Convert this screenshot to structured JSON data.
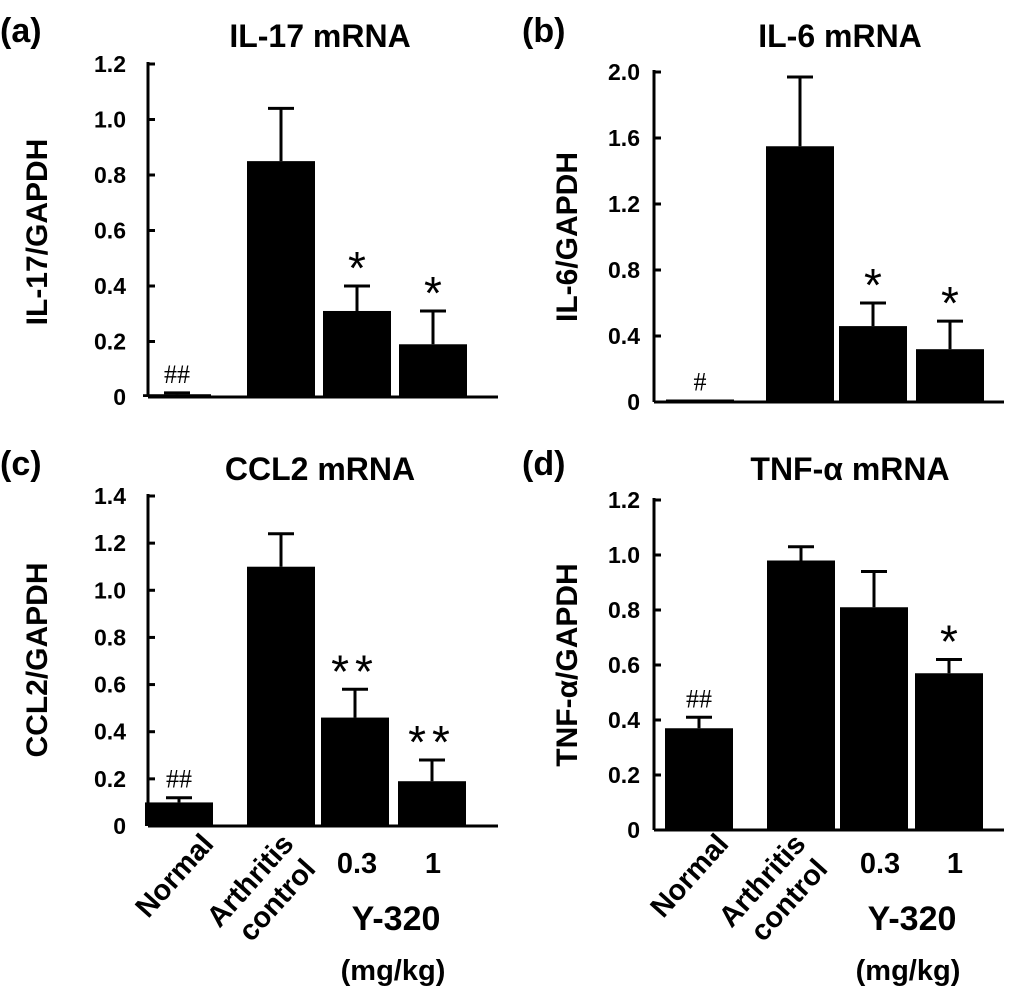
{
  "chart_data": [
    {
      "type": "bar",
      "panel": "(a)",
      "title": "IL-17 mRNA",
      "ylabel": "IL-17/GAPDH",
      "categories": [
        "Normal",
        "Arthritis control",
        "0.3",
        "1"
      ],
      "values": [
        0.01,
        0.85,
        0.31,
        0.19
      ],
      "errors": [
        0.005,
        0.19,
        0.09,
        0.12
      ],
      "significance": [
        "##",
        "",
        "*",
        "*"
      ],
      "ylim": [
        0,
        1.2
      ],
      "yticks": [
        "0",
        "0.2",
        "0.4",
        "0.6",
        "0.8",
        "1.0",
        "1.2"
      ]
    },
    {
      "type": "bar",
      "panel": "(b)",
      "title": "IL-6 mRNA",
      "ylabel": "IL-6/GAPDH",
      "categories": [
        "Normal",
        "Arthritis control",
        "0.3",
        "1"
      ],
      "values": [
        0.01,
        1.55,
        0.46,
        0.32
      ],
      "errors": [
        0.0,
        0.42,
        0.14,
        0.17
      ],
      "significance": [
        "#",
        "",
        "*",
        "*"
      ],
      "ylim": [
        0,
        2.0
      ],
      "yticks": [
        "0",
        "0.4",
        "0.8",
        "1.2",
        "1.6",
        "2.0"
      ]
    },
    {
      "type": "bar",
      "panel": "(c)",
      "title": "CCL2 mRNA",
      "ylabel": "CCL2/GAPDH",
      "categories": [
        "Normal",
        "Arthritis control",
        "0.3",
        "1"
      ],
      "values": [
        0.1,
        1.1,
        0.46,
        0.19
      ],
      "errors": [
        0.02,
        0.14,
        0.12,
        0.09
      ],
      "significance": [
        "##",
        "",
        "**",
        "**"
      ],
      "ylim": [
        0,
        1.4
      ],
      "yticks": [
        "0",
        "0.2",
        "0.4",
        "0.6",
        "0.8",
        "1.0",
        "1.2",
        "1.4"
      ]
    },
    {
      "type": "bar",
      "panel": "(d)",
      "title": "TNF-α mRNA",
      "ylabel": "TNF-α/GAPDH",
      "categories": [
        "Normal",
        "Arthritis control",
        "0.3",
        "1"
      ],
      "values": [
        0.37,
        0.98,
        0.81,
        0.57
      ],
      "errors": [
        0.04,
        0.05,
        0.13,
        0.05
      ],
      "significance": [
        "##",
        "",
        "",
        "*"
      ],
      "ylim": [
        0,
        1.2
      ],
      "yticks": [
        "0",
        "0.2",
        "0.4",
        "0.6",
        "0.8",
        "1.0",
        "1.2"
      ]
    }
  ],
  "x_axis": {
    "normal_label": "Normal",
    "arthritis_label_line1": "Arthritis",
    "arthritis_label_line2": "control",
    "dose_low": "0.3",
    "dose_high": "1",
    "drug_label": "Y-320",
    "unit_label": "(mg/kg)"
  }
}
